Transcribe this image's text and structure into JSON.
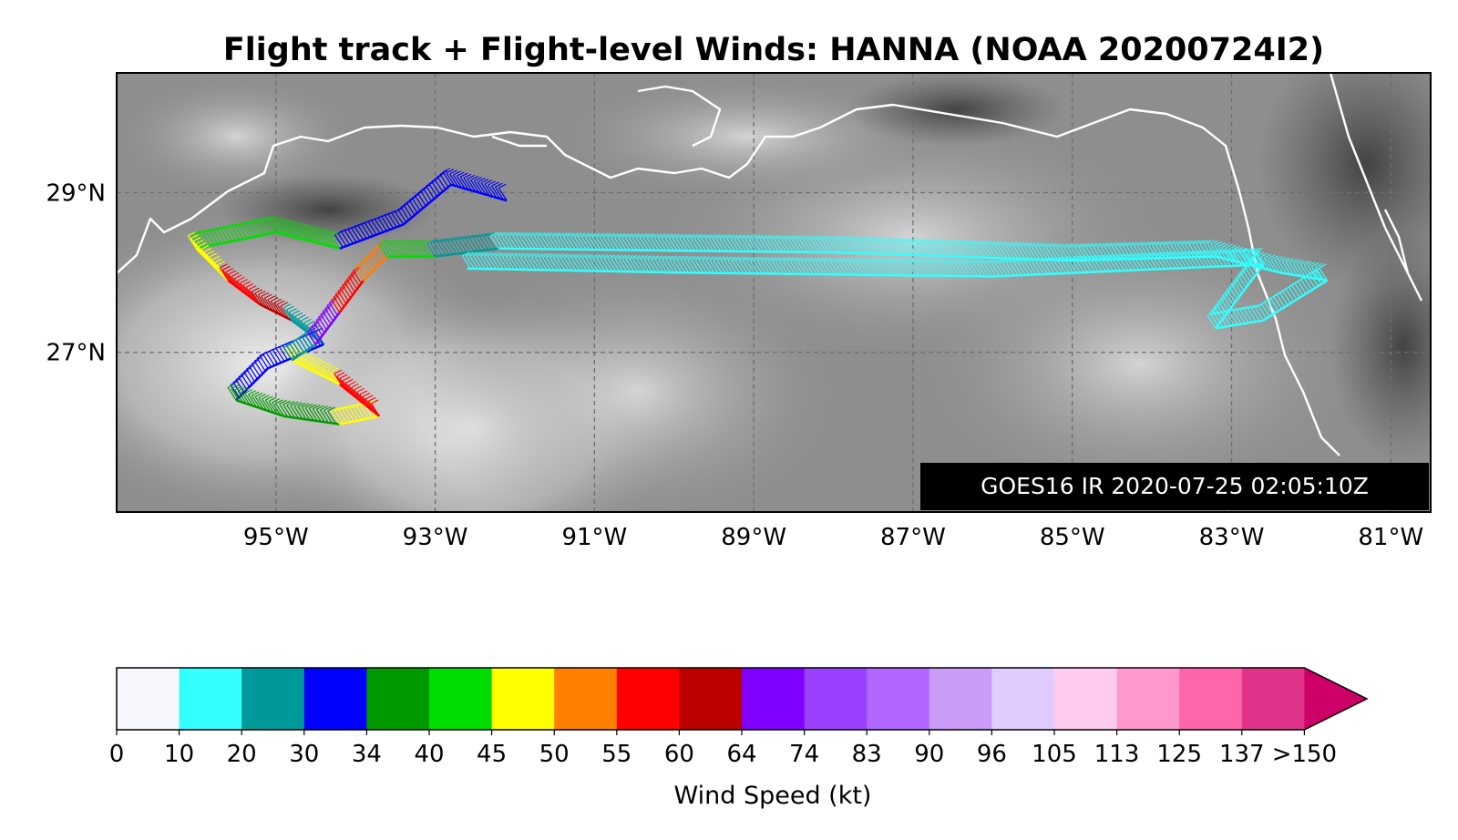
{
  "title": "Flight track + Flight-level Winds: HANNA (NOAA 20200724I2)",
  "imagery_stamp": "GOES16 IR 2020-07-25 02:05:10Z",
  "map": {
    "lon_range": [
      -97.0,
      -80.5
    ],
    "lat_range": [
      25.0,
      30.5
    ],
    "gridlines": true,
    "lon_ticks": [
      {
        "value": -95,
        "label": "95°W"
      },
      {
        "value": -93,
        "label": "93°W"
      },
      {
        "value": -91,
        "label": "91°W"
      },
      {
        "value": -89,
        "label": "89°W"
      },
      {
        "value": -87,
        "label": "87°W"
      },
      {
        "value": -85,
        "label": "85°W"
      },
      {
        "value": -83,
        "label": "83°W"
      },
      {
        "value": -81,
        "label": "81°W"
      }
    ],
    "lat_ticks": [
      {
        "value": 29,
        "label": "29°N"
      },
      {
        "value": 27,
        "label": "27°N"
      }
    ],
    "background": "grayscale infrared satellite cloud imagery",
    "coastline_color": "#ffffff"
  },
  "colorbar": {
    "label": "Wind Speed (kt)",
    "bins": [
      {
        "lo": 0,
        "hi": 10,
        "color": "#f7f8fe"
      },
      {
        "lo": 10,
        "hi": 20,
        "color": "#33ffff"
      },
      {
        "lo": 20,
        "hi": 30,
        "color": "#009999"
      },
      {
        "lo": 30,
        "hi": 34,
        "color": "#0000ff"
      },
      {
        "lo": 34,
        "hi": 40,
        "color": "#009900"
      },
      {
        "lo": 40,
        "hi": 45,
        "color": "#00dd00"
      },
      {
        "lo": 45,
        "hi": 50,
        "color": "#ffff00"
      },
      {
        "lo": 50,
        "hi": 55,
        "color": "#ff7f00"
      },
      {
        "lo": 55,
        "hi": 60,
        "color": "#ff0000"
      },
      {
        "lo": 60,
        "hi": 64,
        "color": "#bb0000"
      },
      {
        "lo": 64,
        "hi": 74,
        "color": "#7f00ff"
      },
      {
        "lo": 74,
        "hi": 83,
        "color": "#9a40ff"
      },
      {
        "lo": 83,
        "hi": 90,
        "color": "#b066ff"
      },
      {
        "lo": 90,
        "hi": 96,
        "color": "#c89cf7"
      },
      {
        "lo": 96,
        "hi": 105,
        "color": "#e0ccff"
      },
      {
        "lo": 105,
        "hi": 113,
        "color": "#ffccee"
      },
      {
        "lo": 113,
        "hi": 125,
        "color": "#ff99cc"
      },
      {
        "lo": 125,
        "hi": 137,
        "color": "#ff66aa"
      },
      {
        "lo": 137,
        "hi": 150,
        "color": "#e0338a"
      }
    ],
    "extend_color": "#cc0066",
    "tick_labels": [
      "0",
      "10",
      "20",
      "30",
      "34",
      "40",
      "45",
      "50",
      "55",
      "60",
      "64",
      "74",
      "83",
      "90",
      "96",
      "105",
      "113",
      "125",
      "137",
      ">150"
    ]
  },
  "flight_track": {
    "segments": [
      {
        "points": [
          [
            -92.1,
            28.9
          ],
          [
            -92.8,
            29.1
          ],
          [
            -93.4,
            28.6
          ],
          [
            -94.2,
            28.3
          ]
        ],
        "wind": 30
      },
      {
        "points": [
          [
            -94.2,
            28.3
          ],
          [
            -95.0,
            28.5
          ],
          [
            -96.0,
            28.3
          ]
        ],
        "wind": 40
      },
      {
        "points": [
          [
            -96.0,
            28.3
          ],
          [
            -95.6,
            27.9
          ]
        ],
        "wind": 47
      },
      {
        "points": [
          [
            -95.6,
            27.9
          ],
          [
            -95.2,
            27.6
          ]
        ],
        "wind": 58
      },
      {
        "points": [
          [
            -95.2,
            27.6
          ],
          [
            -94.8,
            27.4
          ]
        ],
        "wind": 62
      },
      {
        "points": [
          [
            -94.8,
            27.4
          ],
          [
            -94.4,
            27.1
          ]
        ],
        "wind": 25
      },
      {
        "points": [
          [
            -94.4,
            27.1
          ],
          [
            -95.1,
            26.8
          ],
          [
            -95.5,
            26.4
          ]
        ],
        "wind": 30
      },
      {
        "points": [
          [
            -95.5,
            26.4
          ],
          [
            -94.9,
            26.2
          ],
          [
            -94.2,
            26.1
          ]
        ],
        "wind": 38
      },
      {
        "points": [
          [
            -94.2,
            26.1
          ],
          [
            -93.7,
            26.2
          ]
        ],
        "wind": 47
      },
      {
        "points": [
          [
            -93.7,
            26.2
          ],
          [
            -94.2,
            26.6
          ]
        ],
        "wind": 56
      },
      {
        "points": [
          [
            -94.2,
            26.6
          ],
          [
            -94.8,
            26.9
          ]
        ],
        "wind": 47
      },
      {
        "points": [
          [
            -94.8,
            26.9
          ],
          [
            -94.5,
            27.1
          ]
        ],
        "wind": 25
      },
      {
        "points": [
          [
            -94.5,
            27.1
          ],
          [
            -94.2,
            27.5
          ]
        ],
        "wind": 66
      },
      {
        "points": [
          [
            -94.2,
            27.5
          ],
          [
            -93.9,
            27.9
          ]
        ],
        "wind": 56
      },
      {
        "points": [
          [
            -93.9,
            27.9
          ],
          [
            -93.6,
            28.2
          ]
        ],
        "wind": 52
      },
      {
        "points": [
          [
            -93.6,
            28.2
          ],
          [
            -93.0,
            28.2
          ]
        ],
        "wind": 42
      },
      {
        "points": [
          [
            -93.0,
            28.2
          ],
          [
            -92.2,
            28.3
          ]
        ],
        "wind": 25
      },
      {
        "points": [
          [
            -92.2,
            28.3
          ],
          [
            -88.0,
            28.25
          ],
          [
            -85.0,
            28.15
          ],
          [
            -83.2,
            28.2
          ]
        ],
        "wind": 15
      },
      {
        "points": [
          [
            -83.2,
            28.2
          ],
          [
            -82.4,
            28.0
          ],
          [
            -81.8,
            27.9
          ]
        ],
        "wind": 15
      },
      {
        "points": [
          [
            -81.8,
            27.9
          ],
          [
            -82.6,
            27.4
          ],
          [
            -83.2,
            27.3
          ]
        ],
        "wind": 15
      },
      {
        "points": [
          [
            -83.2,
            27.3
          ],
          [
            -82.6,
            28.1
          ],
          [
            -86.0,
            27.95
          ],
          [
            -90.0,
            28.0
          ],
          [
            -92.6,
            28.05
          ]
        ],
        "wind": 15
      }
    ]
  }
}
